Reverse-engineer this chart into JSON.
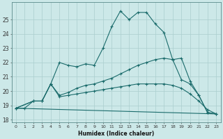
{
  "title": "",
  "xlabel": "Humidex (Indice chaleur)",
  "bg_color": "#cce8e8",
  "grid_color": "#aacece",
  "line_color": "#1a6b6b",
  "xlim": [
    -0.5,
    23.5
  ],
  "ylim": [
    17.8,
    26.2
  ],
  "yticks": [
    18,
    19,
    20,
    21,
    22,
    23,
    24,
    25
  ],
  "xticks": [
    0,
    1,
    2,
    3,
    4,
    5,
    6,
    7,
    8,
    9,
    10,
    11,
    12,
    13,
    14,
    15,
    16,
    17,
    18,
    19,
    20,
    21,
    22,
    23
  ],
  "line1_x": [
    0,
    1,
    2,
    3,
    4,
    5,
    6,
    7,
    8,
    9,
    10,
    11,
    12,
    13,
    14,
    15,
    16,
    17,
    18,
    19,
    20,
    21,
    22,
    23
  ],
  "line1_y": [
    18.8,
    18.8,
    19.3,
    19.3,
    20.5,
    22.0,
    21.8,
    21.7,
    21.9,
    21.8,
    23.0,
    24.5,
    25.6,
    25.0,
    25.5,
    25.5,
    24.7,
    24.1,
    22.2,
    22.3,
    20.7,
    19.7,
    18.5,
    18.4
  ],
  "line2_x": [
    0,
    2,
    3,
    4,
    5,
    6,
    7,
    8,
    9,
    10,
    11,
    12,
    13,
    14,
    15,
    16,
    17,
    18,
    19,
    20,
    21,
    22,
    23
  ],
  "line2_y": [
    18.8,
    19.3,
    19.3,
    20.5,
    19.7,
    19.9,
    20.2,
    20.4,
    20.5,
    20.7,
    20.9,
    21.2,
    21.5,
    21.8,
    22.0,
    22.2,
    22.3,
    22.2,
    20.8,
    20.5,
    19.7,
    18.5,
    18.4
  ],
  "line3_x": [
    0,
    2,
    3,
    4,
    5,
    6,
    7,
    8,
    9,
    10,
    11,
    12,
    13,
    14,
    15,
    16,
    17,
    18,
    19,
    20,
    21,
    22,
    23
  ],
  "line3_y": [
    18.8,
    19.3,
    19.3,
    20.5,
    19.6,
    19.7,
    19.8,
    19.9,
    20.0,
    20.1,
    20.2,
    20.3,
    20.4,
    20.5,
    20.5,
    20.5,
    20.5,
    20.4,
    20.2,
    19.8,
    19.3,
    18.7,
    18.4
  ],
  "line4_x": [
    0,
    23
  ],
  "line4_y": [
    18.8,
    18.4
  ]
}
